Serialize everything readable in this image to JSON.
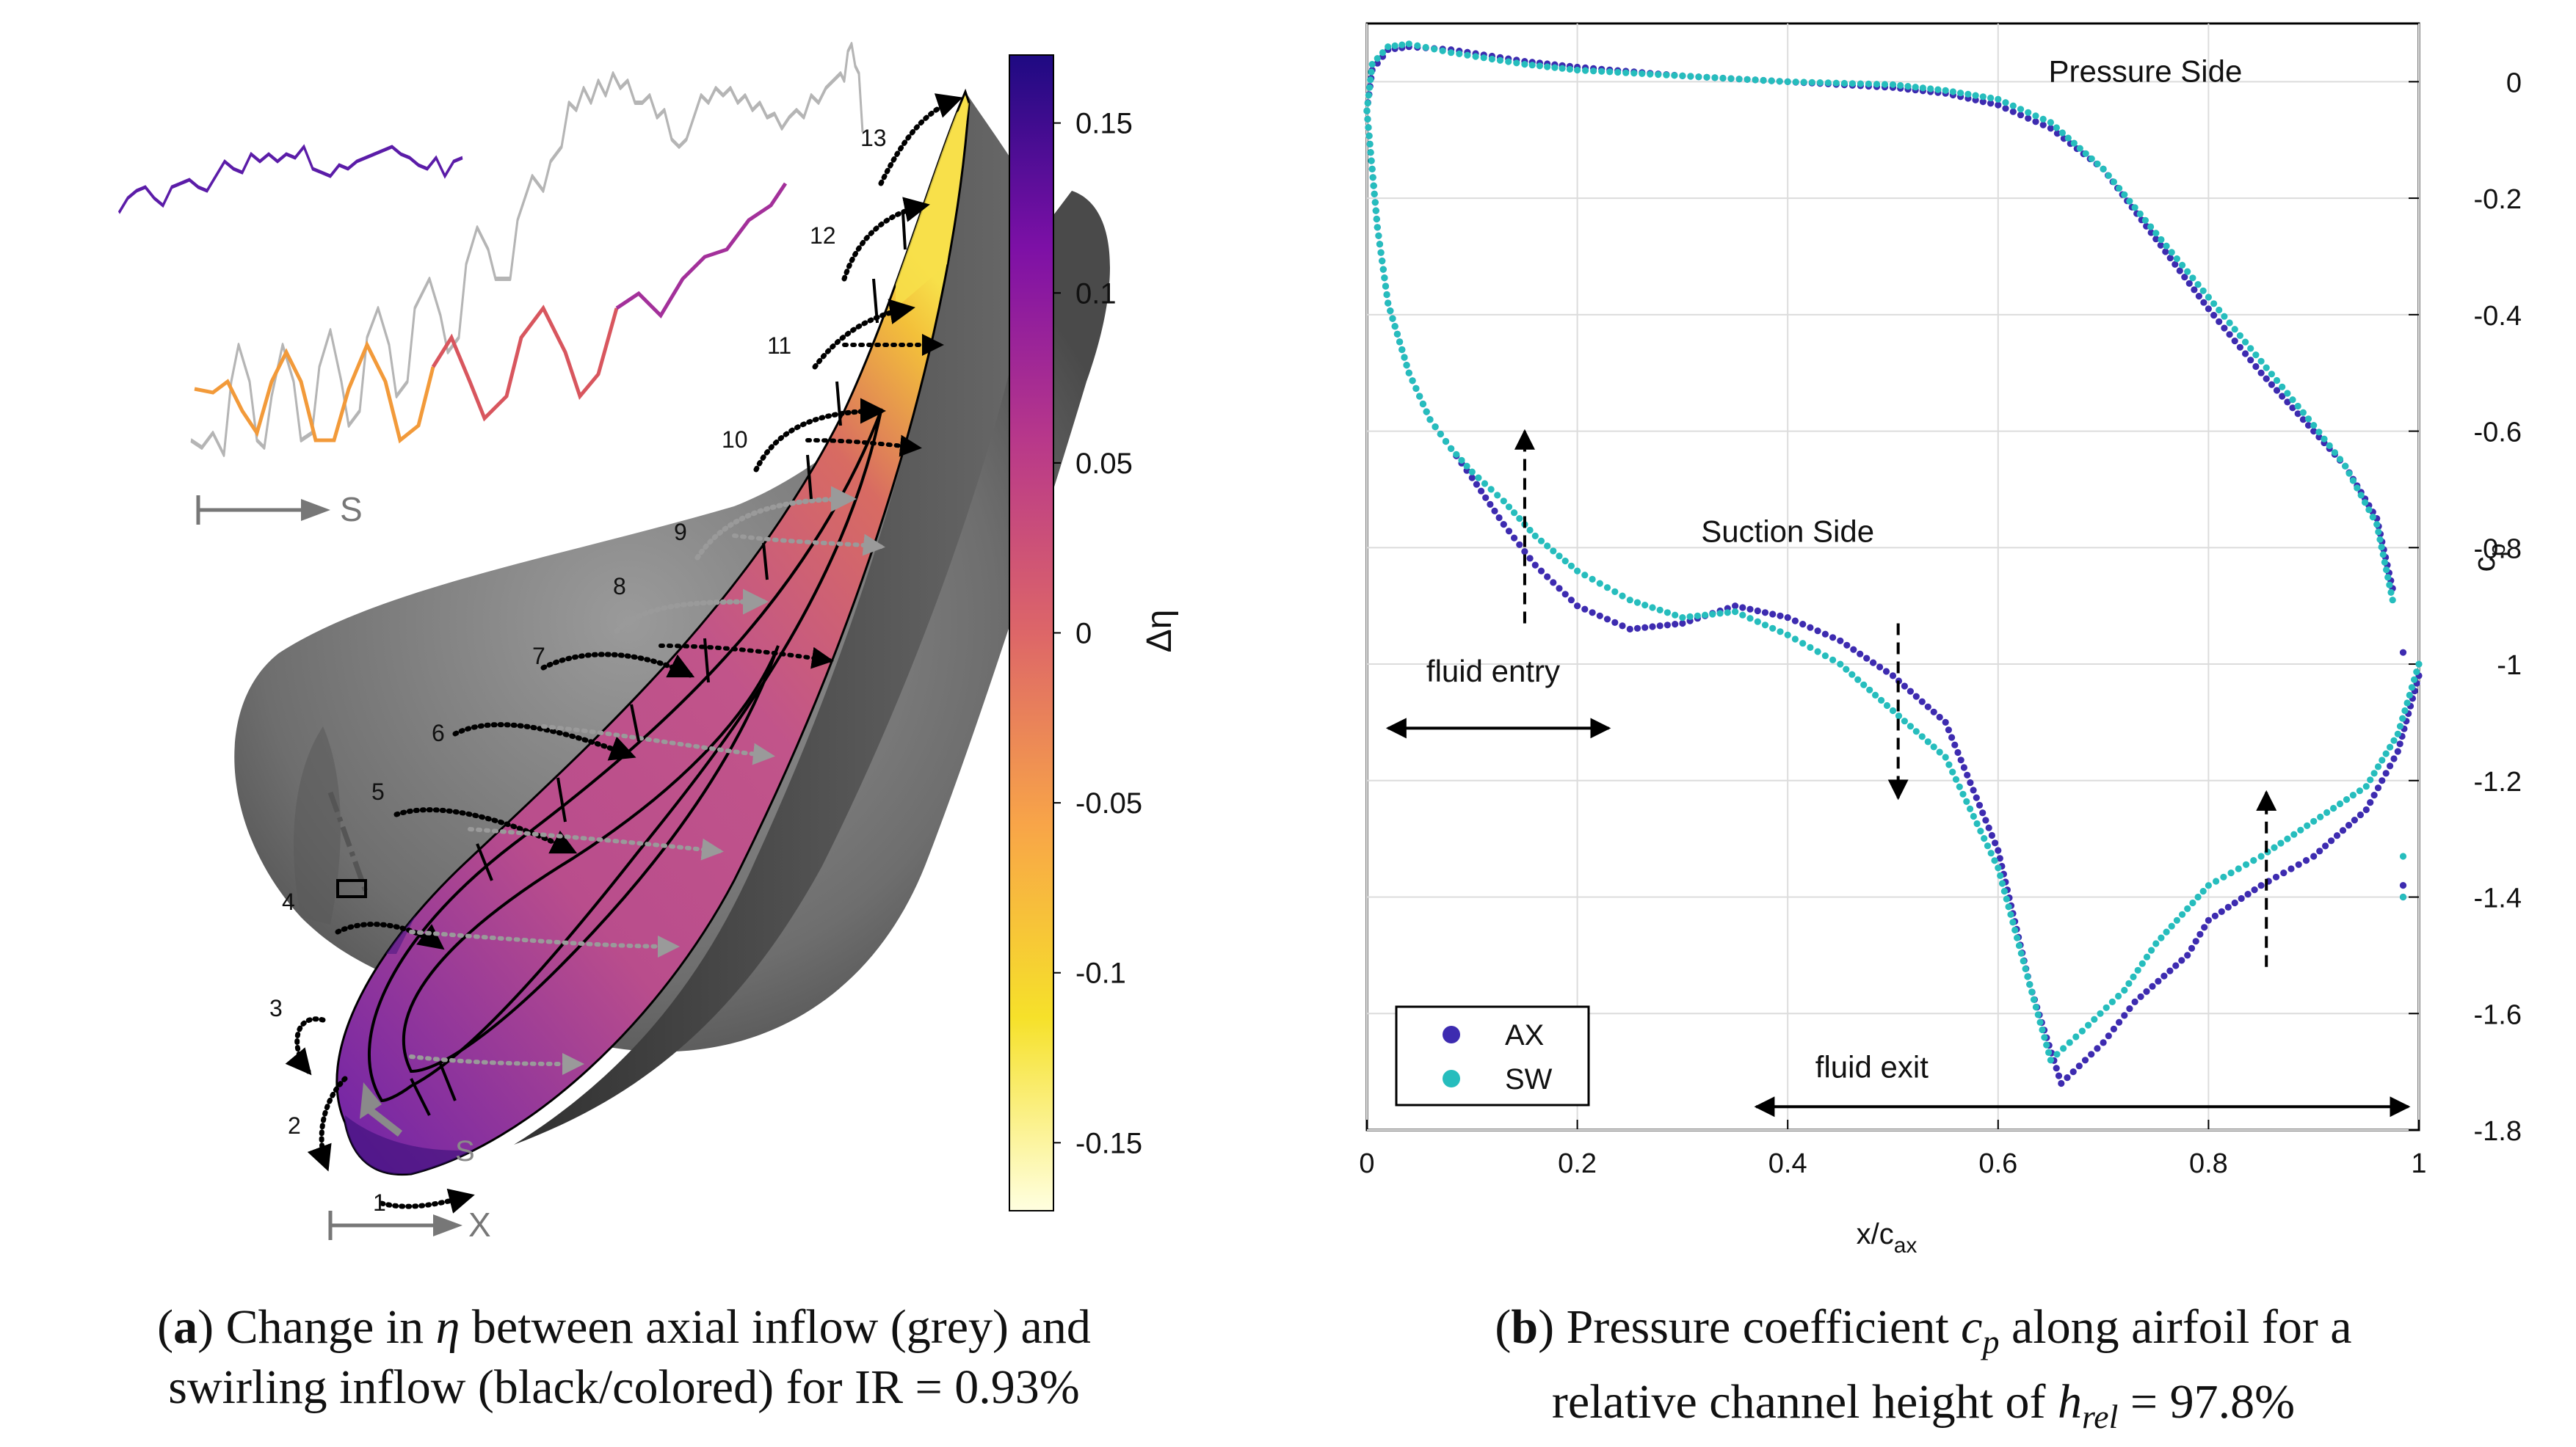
{
  "panel_a": {
    "colorbar": {
      "label": "Δη",
      "ticks": [
        "0.15",
        "0.1",
        "0.05",
        "0",
        "-0.05",
        "-0.1",
        "-0.15"
      ],
      "tick_values": [
        0.15,
        0.1,
        0.05,
        0,
        -0.05,
        -0.1,
        -0.15
      ],
      "range": [
        -0.17,
        0.17
      ],
      "colors": [
        "#ffffe0",
        "#f6e12a",
        "#f8a548",
        "#dd6668",
        "#b8388a",
        "#7d10a6",
        "#1e0a82"
      ]
    },
    "s_axis_label": "S",
    "s_surface_label": "S",
    "x_axis_label": "X",
    "streamline_numbers": [
      "1",
      "2",
      "3",
      "4",
      "5",
      "6",
      "7",
      "8",
      "9",
      "10",
      "11",
      "12",
      "13"
    ],
    "caption": {
      "letter": "a",
      "text_before": "Change in ",
      "symbol": "η",
      "text_after": " between axial inflow (grey) and",
      "line2": "swirling inflow (black/colored) for IR = 0.93%"
    }
  },
  "chart_data": {
    "type": "scatter",
    "xlabel": "x/c",
    "xlabel_sub": "ax",
    "ylabel": "c",
    "ylabel_sub": "p",
    "xlim": [
      0,
      1
    ],
    "ylim": [
      -1.8,
      0.1
    ],
    "xticks": [
      0,
      0.2,
      0.4,
      0.6,
      0.8,
      1
    ],
    "xtick_labels": [
      "0",
      "0.2",
      "0.4",
      "0.6",
      "0.8",
      "1"
    ],
    "yticks": [
      0,
      -0.2,
      -0.4,
      -0.6,
      -0.8,
      -1,
      -1.2,
      -1.4,
      -1.6,
      -1.8
    ],
    "ytick_labels": [
      "0",
      "-0.2",
      "-0.4",
      "-0.6",
      "-0.8",
      "-1",
      "-1.2",
      "-1.4",
      "-1.6",
      "-1.8"
    ],
    "grid": true,
    "legend": {
      "position": "bottom-left",
      "entries": [
        "AX",
        "SW"
      ]
    },
    "series": [
      {
        "name": "AX",
        "color": "#3d2bb0",
        "pressure_side": [
          [
            0,
            -0.05
          ],
          [
            0.005,
            0.02
          ],
          [
            0.02,
            0.055
          ],
          [
            0.04,
            0.06
          ],
          [
            0.08,
            0.055
          ],
          [
            0.15,
            0.035
          ],
          [
            0.2,
            0.025
          ],
          [
            0.3,
            0.01
          ],
          [
            0.4,
            0.0
          ],
          [
            0.5,
            -0.01
          ],
          [
            0.55,
            -0.02
          ],
          [
            0.6,
            -0.04
          ],
          [
            0.65,
            -0.08
          ],
          [
            0.7,
            -0.15
          ],
          [
            0.75,
            -0.27
          ],
          [
            0.8,
            -0.39
          ],
          [
            0.85,
            -0.5
          ],
          [
            0.9,
            -0.6
          ],
          [
            0.93,
            -0.66
          ],
          [
            0.96,
            -0.75
          ],
          [
            0.975,
            -0.87
          ]
        ],
        "suction_side": [
          [
            0,
            -0.05
          ],
          [
            0.01,
            -0.25
          ],
          [
            0.02,
            -0.38
          ],
          [
            0.04,
            -0.5
          ],
          [
            0.06,
            -0.58
          ],
          [
            0.08,
            -0.63
          ],
          [
            0.1,
            -0.68
          ],
          [
            0.13,
            -0.76
          ],
          [
            0.16,
            -0.83
          ],
          [
            0.2,
            -0.9
          ],
          [
            0.25,
            -0.94
          ],
          [
            0.3,
            -0.93
          ],
          [
            0.35,
            -0.9
          ],
          [
            0.4,
            -0.92
          ],
          [
            0.45,
            -0.96
          ],
          [
            0.5,
            -1.02
          ],
          [
            0.55,
            -1.1
          ],
          [
            0.6,
            -1.32
          ],
          [
            0.63,
            -1.55
          ],
          [
            0.66,
            -1.72
          ],
          [
            0.7,
            -1.65
          ],
          [
            0.73,
            -1.58
          ],
          [
            0.78,
            -1.5
          ],
          [
            0.8,
            -1.44
          ],
          [
            0.85,
            -1.38
          ],
          [
            0.9,
            -1.33
          ],
          [
            0.95,
            -1.25
          ],
          [
            0.98,
            -1.15
          ],
          [
            1.0,
            -1.02
          ]
        ],
        "trailing_edge": [
          [
            0.985,
            -0.98
          ],
          [
            0.985,
            -1.38
          ],
          [
            0.985,
            -1.4
          ]
        ]
      },
      {
        "name": "SW",
        "color": "#26bdbd",
        "pressure_side": [
          [
            0,
            -0.05
          ],
          [
            0.005,
            0.03
          ],
          [
            0.02,
            0.06
          ],
          [
            0.04,
            0.065
          ],
          [
            0.08,
            0.05
          ],
          [
            0.15,
            0.03
          ],
          [
            0.2,
            0.02
          ],
          [
            0.3,
            0.01
          ],
          [
            0.4,
            0.0
          ],
          [
            0.5,
            -0.005
          ],
          [
            0.55,
            -0.015
          ],
          [
            0.6,
            -0.03
          ],
          [
            0.65,
            -0.07
          ],
          [
            0.7,
            -0.15
          ],
          [
            0.75,
            -0.26
          ],
          [
            0.8,
            -0.37
          ],
          [
            0.85,
            -0.48
          ],
          [
            0.9,
            -0.59
          ],
          [
            0.93,
            -0.66
          ],
          [
            0.96,
            -0.76
          ],
          [
            0.975,
            -0.89
          ]
        ],
        "suction_side": [
          [
            0,
            -0.05
          ],
          [
            0.01,
            -0.25
          ],
          [
            0.02,
            -0.38
          ],
          [
            0.04,
            -0.5
          ],
          [
            0.06,
            -0.58
          ],
          [
            0.08,
            -0.63
          ],
          [
            0.1,
            -0.67
          ],
          [
            0.13,
            -0.72
          ],
          [
            0.16,
            -0.78
          ],
          [
            0.2,
            -0.84
          ],
          [
            0.25,
            -0.89
          ],
          [
            0.3,
            -0.92
          ],
          [
            0.35,
            -0.91
          ],
          [
            0.4,
            -0.95
          ],
          [
            0.45,
            -1.0
          ],
          [
            0.5,
            -1.08
          ],
          [
            0.55,
            -1.16
          ],
          [
            0.6,
            -1.35
          ],
          [
            0.63,
            -1.55
          ],
          [
            0.65,
            -1.68
          ],
          [
            0.68,
            -1.63
          ],
          [
            0.72,
            -1.56
          ],
          [
            0.75,
            -1.48
          ],
          [
            0.8,
            -1.38
          ],
          [
            0.85,
            -1.33
          ],
          [
            0.9,
            -1.27
          ],
          [
            0.95,
            -1.21
          ],
          [
            0.98,
            -1.12
          ],
          [
            1.0,
            -1.0
          ]
        ],
        "trailing_edge": [
          [
            0.985,
            -1.33
          ],
          [
            0.985,
            -1.4
          ]
        ]
      }
    ],
    "annotations": [
      {
        "text": "Pressure Side",
        "x": 0.74,
        "y": 0.0
      },
      {
        "text": "Suction Side",
        "x": 0.4,
        "y": -0.79
      },
      {
        "text": "fluid entry",
        "x": 0.12,
        "y": -1.03
      },
      {
        "text": "fluid exit",
        "x": 0.48,
        "y": -1.71
      }
    ],
    "arrows": {
      "dashed": [
        {
          "x": 0.15,
          "from": -0.93,
          "to": -0.6
        },
        {
          "x": 0.505,
          "from": -0.93,
          "to": -1.23
        },
        {
          "x": 0.855,
          "from": -1.52,
          "to": -1.22
        }
      ],
      "double": [
        {
          "y": -1.11,
          "from": 0.02,
          "to": 0.23
        },
        {
          "y": -1.76,
          "from": 0.37,
          "to": 0.99
        }
      ]
    },
    "caption": {
      "letter": "b",
      "text_before": "Pressure coefficient ",
      "symbol": "c",
      "symbol_sub": "p",
      "text_after": " along airfoil for a",
      "line2_before": "relative channel height of ",
      "line2_symbol": "h",
      "line2_sub": "rel",
      "line2_after": " = 97.8%"
    }
  }
}
